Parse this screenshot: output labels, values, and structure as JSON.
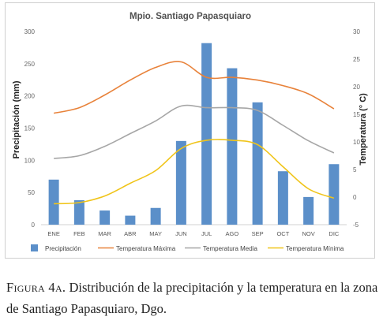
{
  "chart_data": {
    "type": "bar",
    "title": "Mpio. Santiago Papasquiaro",
    "ylabel": "Precipitación (mm)",
    "y2label": "Temperatura (° C)",
    "categories": [
      "ENE",
      "FEB",
      "MAR",
      "ABR",
      "MAY",
      "JUN",
      "JUL",
      "AGO",
      "SEP",
      "OCT",
      "NOV",
      "DIC"
    ],
    "ylim": [
      0,
      300
    ],
    "yticks": [
      "0",
      "50",
      "100",
      "150",
      "200",
      "250",
      "300"
    ],
    "y2lim": [
      -5,
      30
    ],
    "y2ticks": [
      "-5",
      "0",
      "5",
      "10",
      "15",
      "20",
      "25",
      "30"
    ],
    "grid": false,
    "legend_position": "bottom",
    "series": [
      {
        "name": "Precipitación",
        "type": "bar",
        "axis": "left",
        "color": "#5b8fc9",
        "values": [
          70,
          38,
          22,
          14,
          26,
          130,
          282,
          243,
          190,
          83,
          43,
          94
        ]
      },
      {
        "name": "Temperatura Máxima",
        "type": "line",
        "axis": "right",
        "color": "#e8823a",
        "values": [
          15.2,
          16.2,
          18.5,
          21.2,
          23.5,
          24.5,
          21.7,
          21.7,
          21.2,
          20.2,
          18.7,
          16.0
        ]
      },
      {
        "name": "Temperatura Media",
        "type": "line",
        "axis": "right",
        "color": "#a6a6a6",
        "values": [
          7.0,
          7.5,
          9.2,
          11.5,
          13.8,
          16.5,
          16.2,
          16.2,
          15.7,
          13.0,
          10.2,
          8.0
        ]
      },
      {
        "name": "Temperatura Mínima",
        "type": "line",
        "axis": "right",
        "color": "#f0c419",
        "values": [
          -1.2,
          -1.0,
          0.2,
          2.5,
          4.8,
          8.8,
          10.3,
          10.3,
          9.5,
          5.5,
          1.5,
          -0.2
        ]
      }
    ]
  },
  "caption": {
    "label": "Figura 4a.",
    "text": "Distribución de la precipitación y la temperatura en la zona de Santiago Papasquiaro, Dgo."
  }
}
